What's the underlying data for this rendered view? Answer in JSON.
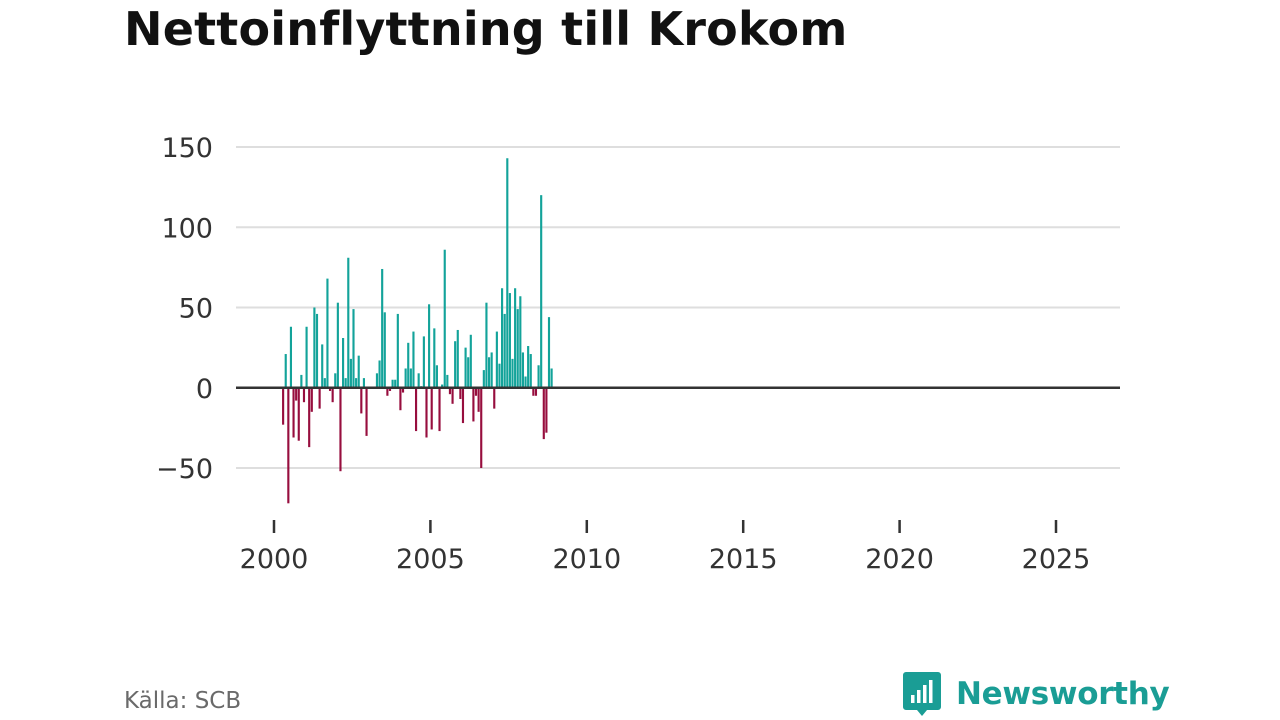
{
  "title": "Nettoinflyttning till Krokom",
  "source": "Källa: SCB",
  "brand": {
    "name": "Newsworthy",
    "color": "#1a9d95",
    "icon": "newsworthy-logo-icon"
  },
  "colors": {
    "positive": "#13a39a",
    "negative": "#970e3e",
    "grid": "#dedede",
    "zero_line": "#333333",
    "tick_text": "#333333"
  },
  "chart_data": {
    "type": "bar",
    "title": "Nettoinflyttning till Krokom",
    "xlabel": "",
    "ylabel": "",
    "ylim": [
      -80,
      150
    ],
    "xlim": [
      1999.5,
      2026.25
    ],
    "y_ticks": [
      150,
      100,
      50,
      0,
      -50
    ],
    "y_tick_labels": [
      "150",
      "100",
      "50",
      "0",
      "−50"
    ],
    "x_ticks": [
      2000,
      2005,
      2010,
      2015,
      2020,
      2025
    ],
    "x_tick_labels": [
      "2000",
      "2005",
      "2010",
      "2015",
      "2020",
      "2025"
    ],
    "frequency": "monthly",
    "start": {
      "year": 2000,
      "month": 1
    },
    "grid": true,
    "values": [
      0,
      0,
      0,
      -23,
      21,
      -72,
      38,
      -31,
      -8,
      -33,
      8,
      -9,
      38,
      -37,
      -15,
      50,
      46,
      -13,
      27,
      6,
      68,
      -2,
      -9,
      9,
      53,
      -52,
      31,
      6,
      81,
      18,
      49,
      6,
      20,
      -16,
      6,
      -30,
      0,
      0,
      0,
      9,
      17,
      74,
      47,
      -5,
      -2,
      5,
      5,
      46,
      -14,
      -3,
      12,
      28,
      12,
      35,
      -27,
      9,
      1,
      32,
      -31,
      52,
      -26,
      37,
      14,
      -27,
      2,
      86,
      8,
      -4,
      -10,
      29,
      36,
      -7,
      -22,
      25,
      19,
      33,
      -21,
      -5,
      -15,
      -50,
      11,
      53,
      19,
      22,
      -13,
      35,
      15,
      62,
      46,
      143,
      59,
      18,
      62,
      49,
      57,
      22,
      7,
      26,
      21,
      -5,
      -5,
      14,
      120,
      -32,
      -28,
      44,
      12
    ]
  }
}
